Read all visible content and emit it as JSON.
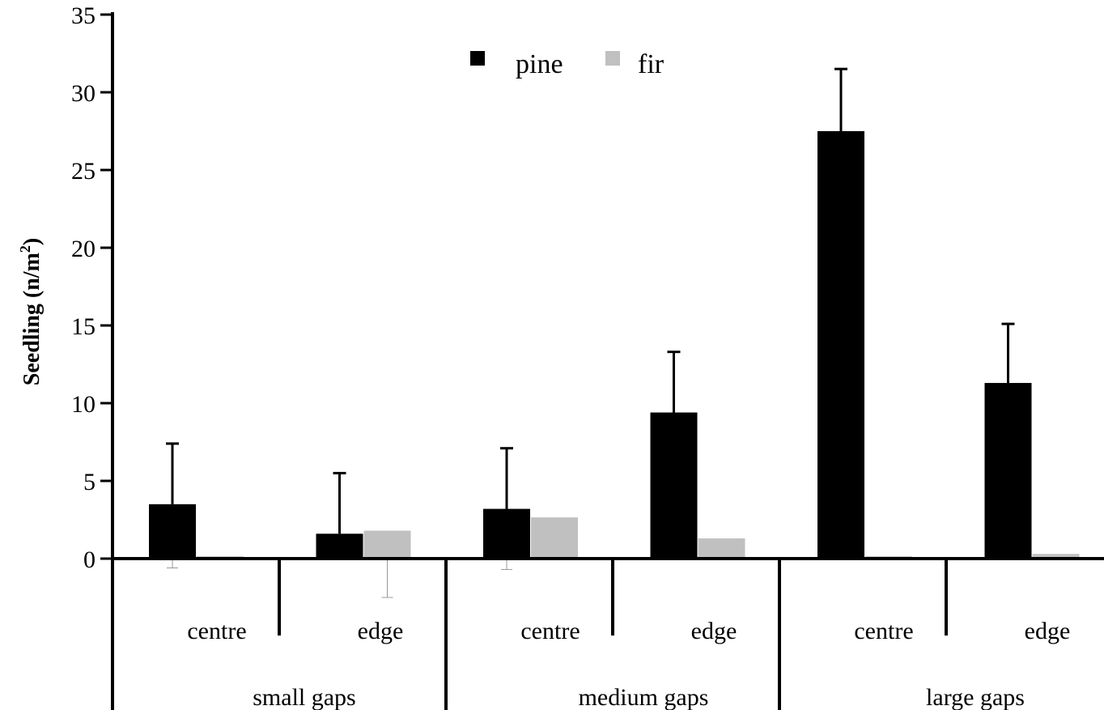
{
  "chart_data": {
    "type": "bar",
    "ylabel": "Seedling (n/m²)",
    "ylabel_main": "Seedling (n/m",
    "ylabel_sup": "2",
    "ylabel_close": ")",
    "ylim": [
      0,
      35
    ],
    "yticks": [
      0,
      5,
      10,
      15,
      20,
      25,
      30,
      35
    ],
    "groups": [
      "small gaps",
      "medium gaps",
      "large gaps"
    ],
    "subgroups": [
      "centre",
      "edge"
    ],
    "categories": [
      "small gaps centre",
      "small gaps edge",
      "medium gaps centre",
      "medium gaps edge",
      "large gaps centre",
      "large gaps edge"
    ],
    "legend_position": "top-center",
    "grid": false,
    "series": [
      {
        "name": "pine",
        "color": "#000000",
        "values": [
          3.5,
          1.6,
          3.2,
          9.4,
          27.5,
          11.3
        ],
        "error_upper": [
          7.4,
          5.5,
          7.1,
          13.3,
          31.5,
          15.1
        ],
        "error_lower": [
          -0.6,
          null,
          -0.7,
          null,
          null,
          null
        ]
      },
      {
        "name": "fir",
        "color": "#c0c0c0",
        "values": [
          0.15,
          1.8,
          2.65,
          1.3,
          0.15,
          0.3
        ],
        "error_upper": [
          null,
          null,
          null,
          null,
          null,
          null
        ],
        "error_lower": [
          null,
          -2.5,
          null,
          null,
          null,
          null
        ]
      }
    ]
  }
}
